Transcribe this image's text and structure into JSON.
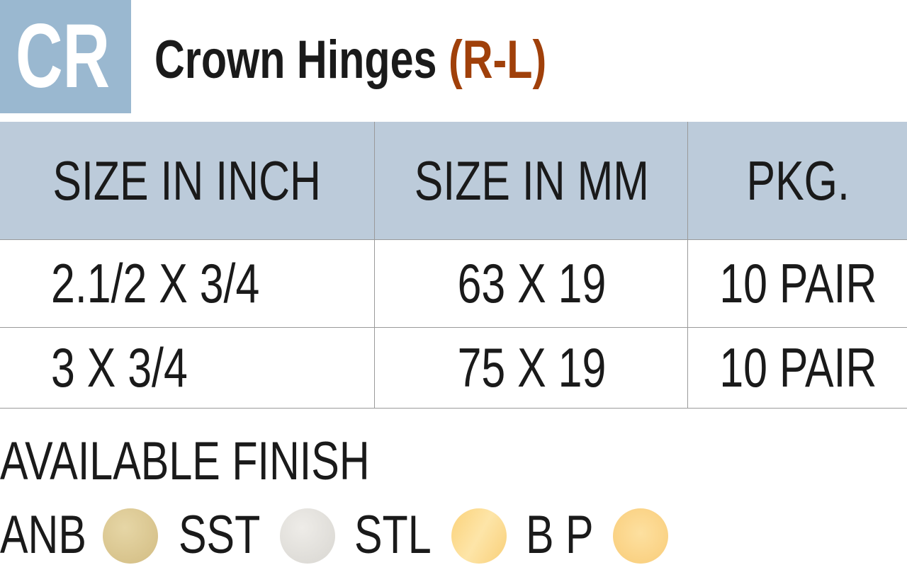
{
  "badge": "CR",
  "title": {
    "main": "Crown Hinges",
    "suffix": "(R-L)"
  },
  "table": {
    "headers": [
      "SIZE IN INCH",
      "SIZE IN MM",
      "PKG."
    ],
    "rows": [
      [
        "2.1/2 X 3/4",
        "63 X 19",
        "10 PAIR"
      ],
      [
        "3 X 3/4",
        "75 X 19",
        "10 PAIR"
      ]
    ]
  },
  "finish": {
    "label": "AVAILABLE FINISH",
    "items": [
      {
        "code": "ANB",
        "color": "#d9c48f"
      },
      {
        "code": "SST",
        "color": "#e2e0dc"
      },
      {
        "code": "STL",
        "color": "#fbd77f"
      },
      {
        "code": "B P",
        "color": "#fcd37d"
      }
    ]
  },
  "colors": {
    "badge": "#9ab8d0",
    "header": "#bccbda",
    "accent": "#a0400a"
  }
}
